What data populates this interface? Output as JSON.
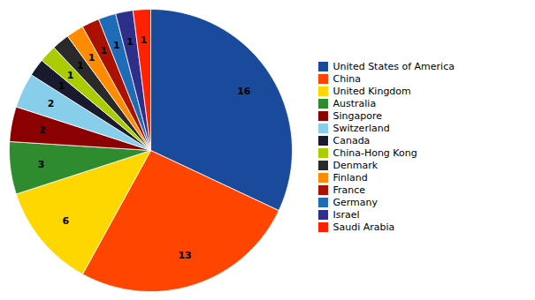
{
  "chart_data": {
    "type": "pie",
    "categories": [
      "United States of America",
      "China",
      "United Kingdom",
      "Australia",
      "Singapore",
      "Switzerland",
      "Canada",
      "China-Hong Kong",
      "Denmark",
      "Finland",
      "France",
      "Germany",
      "Israel",
      "Saudi Arabia"
    ],
    "values": [
      16,
      13,
      6,
      3,
      2,
      2,
      1,
      1,
      1,
      1,
      1,
      1,
      1,
      1
    ],
    "colors": [
      "#1a4a9b",
      "#ff4500",
      "#ffd700",
      "#2e8b2e",
      "#8b0000",
      "#87ceeb",
      "#1a1a2e",
      "#aacc00",
      "#2a2a2a",
      "#ff8c00",
      "#aa1100",
      "#1e6bb8",
      "#2e2e8b",
      "#ff2200"
    ],
    "data_labels": true,
    "legend": "right"
  }
}
